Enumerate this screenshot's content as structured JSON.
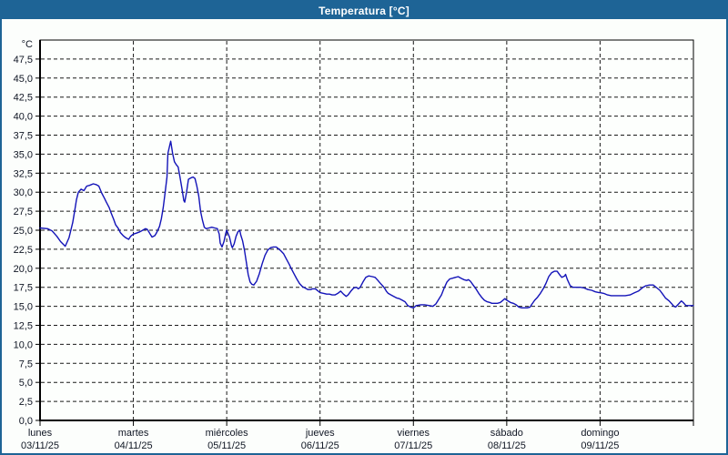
{
  "window": {
    "title": "Temperatura [°C]"
  },
  "colors": {
    "titlebar_bg": "#1e6496",
    "titlebar_text": "#ffffff",
    "window_border": "#1e6496",
    "window_bg": "#fcfefc",
    "plot_bg": "#fdfffd",
    "line": "#1313b8",
    "grid": "#1a1a1a",
    "axis_text": "#101624"
  },
  "chart_data": {
    "type": "line",
    "title": "Temperatura [°C]",
    "y_unit": "°C",
    "ylim": [
      0,
      50
    ],
    "ytick_step": 2.5,
    "grid": "dashed",
    "legend": "none",
    "xlim_days": [
      0,
      7
    ],
    "yticks": [
      {
        "v": 0,
        "label": "0,0"
      },
      {
        "v": 2.5,
        "label": "2,5"
      },
      {
        "v": 5,
        "label": "5,0"
      },
      {
        "v": 7.5,
        "label": "7,5"
      },
      {
        "v": 10,
        "label": "10,0"
      },
      {
        "v": 12.5,
        "label": "12,5"
      },
      {
        "v": 15,
        "label": "15,0"
      },
      {
        "v": 17.5,
        "label": "17,5"
      },
      {
        "v": 20,
        "label": "20,0"
      },
      {
        "v": 22.5,
        "label": "22,5"
      },
      {
        "v": 25,
        "label": "25,0"
      },
      {
        "v": 27.5,
        "label": "27,5"
      },
      {
        "v": 30,
        "label": "30,0"
      },
      {
        "v": 32.5,
        "label": "32,5"
      },
      {
        "v": 35,
        "label": "35,0"
      },
      {
        "v": 37.5,
        "label": "37,5"
      },
      {
        "v": 40,
        "label": "40,0"
      },
      {
        "v": 42.5,
        "label": "42,5"
      },
      {
        "v": 45,
        "label": "45,0"
      },
      {
        "v": 47.5,
        "label": "47,5"
      }
    ],
    "x_days": [
      {
        "label": "lunes",
        "date": "03/11/25"
      },
      {
        "label": "martes",
        "date": "04/11/25"
      },
      {
        "label": "miércoles",
        "date": "05/11/25"
      },
      {
        "label": "jueves",
        "date": "06/11/25"
      },
      {
        "label": "viernes",
        "date": "07/11/25"
      },
      {
        "label": "sábado",
        "date": "08/11/25"
      },
      {
        "label": "domingo",
        "date": "09/11/25"
      }
    ],
    "series": [
      {
        "name": "Temperatura",
        "color": "#1313b8",
        "x": [
          0.0,
          0.08,
          0.13,
          0.18,
          0.22,
          0.27,
          0.31,
          0.35,
          0.37,
          0.39,
          0.41,
          0.44,
          0.47,
          0.5,
          0.53,
          0.57,
          0.6,
          0.63,
          0.66,
          0.69,
          0.71,
          0.74,
          0.76,
          0.79,
          0.81,
          0.84,
          0.86,
          0.89,
          0.92,
          0.95,
          0.97,
          1.0,
          1.03,
          1.07,
          1.1,
          1.13,
          1.15,
          1.18,
          1.2,
          1.23,
          1.25,
          1.28,
          1.3,
          1.32,
          1.34,
          1.36,
          1.37,
          1.39,
          1.4,
          1.42,
          1.44,
          1.46,
          1.48,
          1.5,
          1.52,
          1.54,
          1.55,
          1.57,
          1.59,
          1.62,
          1.64,
          1.66,
          1.68,
          1.7,
          1.72,
          1.74,
          1.76,
          1.78,
          1.81,
          1.84,
          1.87,
          1.9,
          1.92,
          1.93,
          1.95,
          1.97,
          1.99,
          2.0,
          2.03,
          2.05,
          2.06,
          2.08,
          2.1,
          2.12,
          2.14,
          2.15,
          2.17,
          2.19,
          2.21,
          2.23,
          2.25,
          2.27,
          2.29,
          2.32,
          2.35,
          2.38,
          2.41,
          2.44,
          2.47,
          2.5,
          2.53,
          2.55,
          2.58,
          2.61,
          2.64,
          2.67,
          2.69,
          2.72,
          2.75,
          2.78,
          2.81,
          2.84,
          2.87,
          2.9,
          2.92,
          2.95,
          2.98,
          3.0,
          3.04,
          3.07,
          3.1,
          3.13,
          3.16,
          3.19,
          3.22,
          3.25,
          3.28,
          3.3,
          3.33,
          3.36,
          3.39,
          3.41,
          3.43,
          3.46,
          3.49,
          3.52,
          3.56,
          3.59,
          3.62,
          3.64,
          3.67,
          3.69,
          3.71,
          3.73,
          3.76,
          3.79,
          3.82,
          3.85,
          3.88,
          3.91,
          3.94,
          3.97,
          4.0,
          4.03,
          4.08,
          4.12,
          4.17,
          4.21,
          4.24,
          4.27,
          4.3,
          4.33,
          4.36,
          4.39,
          4.42,
          4.45,
          4.48,
          4.51,
          4.54,
          4.57,
          4.59,
          4.61,
          4.64,
          4.67,
          4.7,
          4.73,
          4.76,
          4.79,
          4.82,
          4.84,
          4.87,
          4.9,
          4.93,
          4.96,
          4.98,
          5.0,
          5.04,
          5.07,
          5.1,
          5.13,
          5.16,
          5.19,
          5.22,
          5.25,
          5.27,
          5.3,
          5.33,
          5.36,
          5.39,
          5.42,
          5.45,
          5.48,
          5.51,
          5.54,
          5.57,
          5.59,
          5.62,
          5.63,
          5.65,
          5.68,
          5.71,
          5.75,
          5.79,
          5.83,
          5.87,
          5.91,
          5.95,
          5.99,
          6.0,
          6.04,
          6.08,
          6.12,
          6.17,
          6.22,
          6.27,
          6.32,
          6.37,
          6.41,
          6.46,
          6.49,
          6.53,
          6.57,
          6.61,
          6.64,
          6.67,
          6.7,
          6.74,
          6.77,
          6.79,
          6.81,
          6.84,
          6.87,
          6.89,
          6.92,
          6.95,
          6.98,
          7.0
        ],
        "y": [
          25.3,
          25.2,
          24.9,
          24.2,
          23.5,
          22.9,
          24.0,
          26.0,
          27.5,
          29.0,
          30.0,
          30.4,
          30.2,
          30.8,
          30.9,
          31.1,
          31.0,
          30.8,
          29.9,
          29.2,
          28.7,
          28.0,
          27.3,
          26.4,
          25.7,
          25.2,
          24.7,
          24.3,
          24.0,
          23.8,
          24.2,
          24.5,
          24.6,
          24.8,
          25.0,
          25.2,
          25.1,
          24.5,
          24.1,
          24.3,
          24.7,
          25.5,
          26.5,
          28.0,
          29.9,
          32.0,
          35.1,
          36.2,
          36.7,
          35.1,
          34.0,
          33.6,
          33.3,
          31.9,
          30.5,
          28.9,
          28.7,
          30.0,
          31.7,
          31.9,
          32.0,
          31.8,
          30.8,
          29.5,
          27.5,
          26.3,
          25.4,
          25.2,
          25.3,
          25.4,
          25.3,
          25.2,
          24.5,
          23.3,
          22.8,
          23.5,
          24.6,
          25.0,
          24.1,
          23.0,
          22.7,
          23.2,
          24.2,
          24.8,
          25.0,
          24.4,
          23.6,
          22.4,
          20.8,
          19.2,
          18.2,
          17.9,
          17.8,
          18.3,
          19.3,
          20.6,
          21.7,
          22.4,
          22.7,
          22.8,
          22.8,
          22.6,
          22.3,
          21.9,
          21.2,
          20.5,
          20.0,
          19.3,
          18.6,
          18.0,
          17.6,
          17.4,
          17.2,
          17.2,
          17.3,
          17.3,
          17.0,
          16.8,
          16.7,
          16.6,
          16.6,
          16.5,
          16.5,
          16.7,
          17.0,
          16.6,
          16.3,
          16.5,
          17.0,
          17.4,
          17.5,
          17.3,
          17.5,
          18.2,
          18.8,
          19.0,
          18.9,
          18.8,
          18.4,
          18.1,
          17.7,
          17.4,
          17.0,
          16.7,
          16.5,
          16.3,
          16.1,
          16.0,
          15.8,
          15.6,
          15.1,
          14.9,
          14.8,
          15.1,
          15.2,
          15.2,
          15.1,
          15.0,
          15.3,
          15.9,
          16.5,
          17.4,
          18.2,
          18.6,
          18.7,
          18.8,
          18.9,
          18.7,
          18.5,
          18.4,
          18.5,
          18.3,
          17.8,
          17.3,
          16.7,
          16.2,
          15.8,
          15.6,
          15.5,
          15.4,
          15.4,
          15.4,
          15.5,
          15.8,
          16.0,
          15.8,
          15.5,
          15.4,
          15.2,
          14.9,
          14.8,
          14.8,
          14.8,
          14.9,
          15.3,
          15.8,
          16.2,
          16.7,
          17.3,
          18.0,
          18.9,
          19.4,
          19.6,
          19.6,
          19.1,
          18.8,
          19.0,
          19.2,
          18.5,
          17.7,
          17.5,
          17.5,
          17.5,
          17.4,
          17.2,
          17.1,
          16.9,
          16.8,
          16.8,
          16.7,
          16.5,
          16.4,
          16.4,
          16.4,
          16.4,
          16.5,
          16.8,
          17.0,
          17.5,
          17.7,
          17.8,
          17.8,
          17.4,
          17.1,
          16.6,
          16.1,
          15.7,
          15.3,
          15.0,
          14.9,
          15.3,
          15.7,
          15.5,
          15.1,
          15.1,
          15.1,
          15.1
        ]
      }
    ]
  }
}
